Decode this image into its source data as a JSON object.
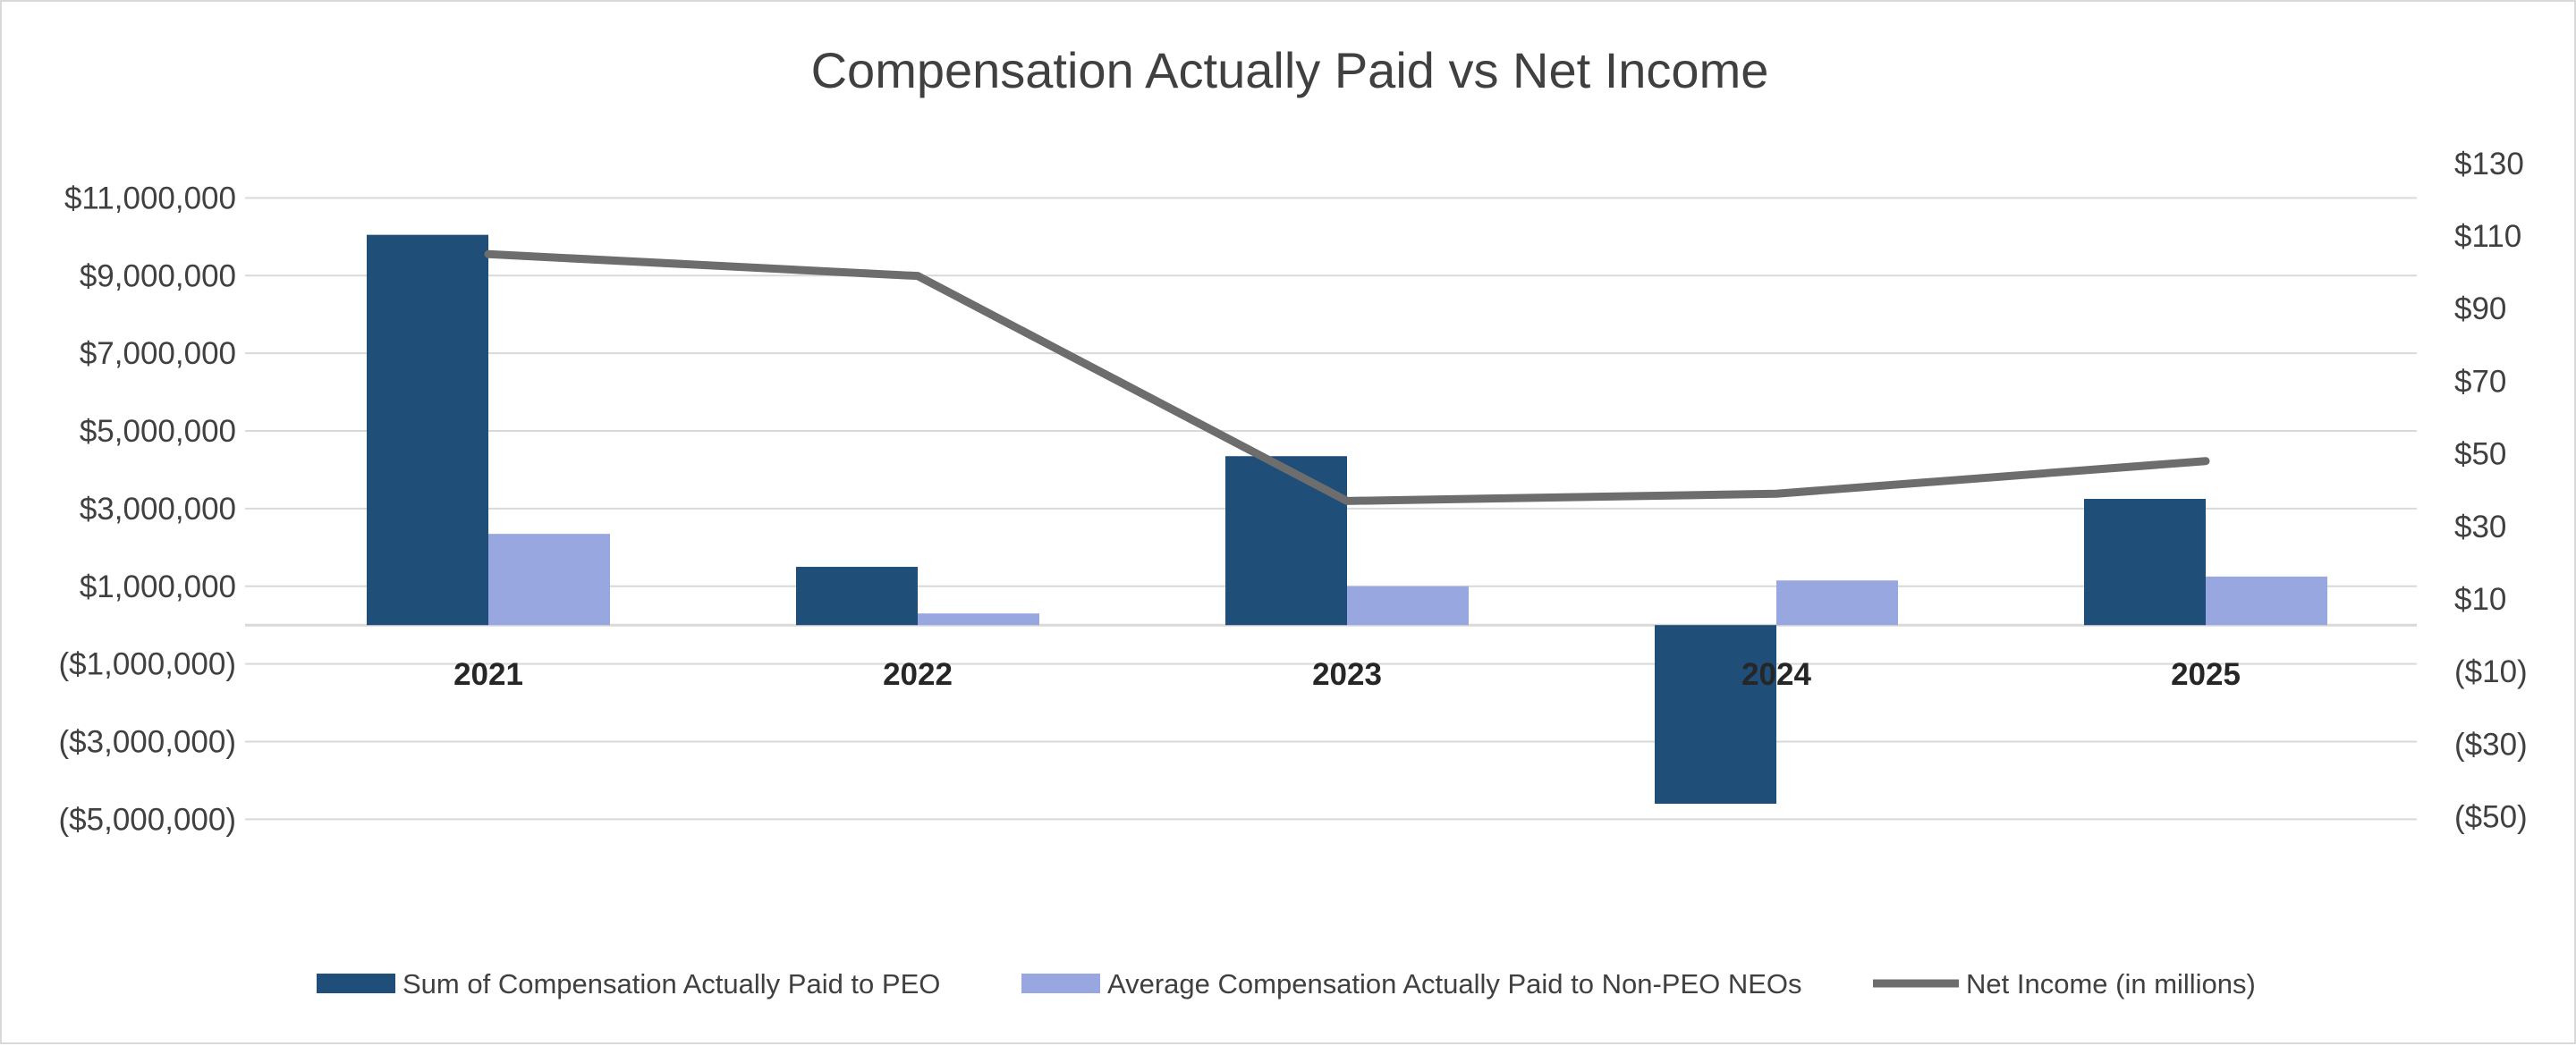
{
  "chart_data": {
    "type": "bar",
    "title": "Compensation Actually Paid vs Net Income",
    "categories": [
      "2021",
      "2022",
      "2023",
      "2024",
      "2025"
    ],
    "series": [
      {
        "name": "Sum of Compensation Actually Paid to PEO",
        "kind": "bar",
        "axis": "left",
        "color": "#1f4e79",
        "values": [
          10050000,
          1500000,
          4350000,
          -4600000,
          3250000
        ]
      },
      {
        "name": "Average Compensation Actually Paid to Non-PEO NEOs",
        "kind": "bar",
        "axis": "left",
        "color": "#99a7e0",
        "values": [
          2350000,
          300000,
          1000000,
          1150000,
          1250000
        ]
      },
      {
        "name": "Net Income (in millions)",
        "kind": "line",
        "axis": "right",
        "color": "#6d6d6d",
        "values": [
          105,
          99,
          37,
          39,
          48
        ]
      }
    ],
    "left_axis": {
      "ylim": [
        -6000000,
        12000000
      ],
      "ticks": [
        11000000,
        9000000,
        7000000,
        5000000,
        3000000,
        1000000,
        -1000000,
        -3000000,
        -5000000
      ],
      "tick_labels": [
        "$11,000,000",
        "$9,000,000",
        "$7,000,000",
        "$5,000,000",
        "$3,000,000",
        "$1,000,000",
        "($1,000,000)",
        "($3,000,000)",
        "($5,000,000)"
      ]
    },
    "right_axis": {
      "ylim": [
        -60,
        130
      ],
      "ticks": [
        130,
        110,
        90,
        70,
        50,
        30,
        10,
        -10,
        -30,
        -50
      ],
      "tick_labels": [
        "$130",
        "$110",
        "$90",
        "$70",
        "$50",
        "$30",
        "$10",
        "($10)",
        "($30)",
        "($50)"
      ]
    },
    "grid": true,
    "legend": "bottom"
  }
}
